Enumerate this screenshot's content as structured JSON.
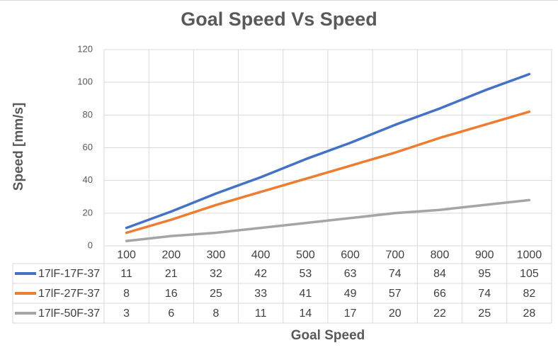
{
  "chart_data": {
    "type": "line",
    "title": "Goal Speed Vs Speed",
    "xlabel": "Goal Speed",
    "ylabel": "Speed [mm/s]",
    "categories": [
      "100",
      "200",
      "300",
      "400",
      "500",
      "600",
      "700",
      "800",
      "900",
      "1000"
    ],
    "ylim": [
      0,
      120
    ],
    "yticks": [
      "0",
      "20",
      "40",
      "60",
      "80",
      "100",
      "120"
    ],
    "grid": true,
    "legend_placement": "data-table",
    "series": [
      {
        "name": "17lF-17F-37",
        "color": "#4472c4",
        "values": [
          11,
          21,
          32,
          42,
          53,
          63,
          74,
          84,
          95,
          105
        ]
      },
      {
        "name": "17lF-27F-37",
        "color": "#ed7d31",
        "values": [
          8,
          16,
          25,
          33,
          41,
          49,
          57,
          66,
          74,
          82
        ]
      },
      {
        "name": "17lF-50F-37",
        "color": "#a5a5a5",
        "values": [
          3,
          6,
          8,
          11,
          14,
          17,
          20,
          22,
          25,
          28
        ]
      }
    ]
  }
}
